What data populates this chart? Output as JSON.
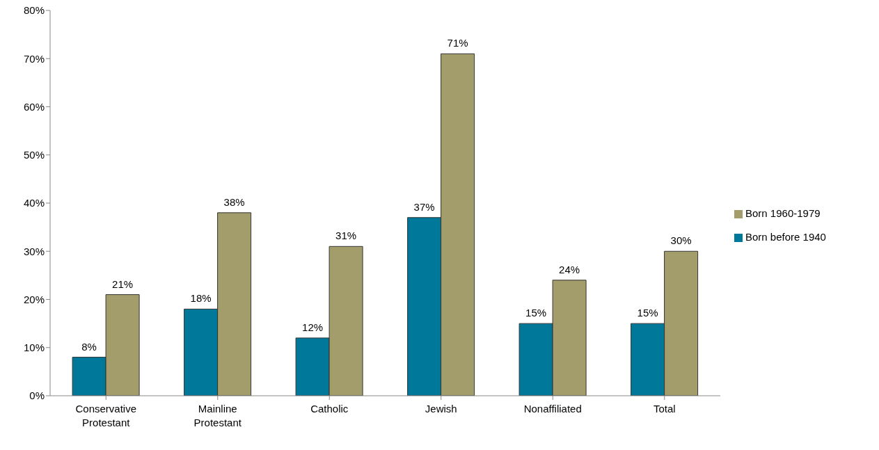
{
  "chart_data": {
    "type": "bar",
    "categories": [
      "Conservative Protestant",
      "Mainline Protestant",
      "Catholic",
      "Jewish",
      "Nonaffiliated",
      "Total"
    ],
    "series": [
      {
        "name": "Born before 1940",
        "color": "#00789a",
        "values": [
          8,
          18,
          12,
          37,
          15,
          15
        ],
        "value_labels": [
          "8%",
          "18%",
          "12%",
          "37%",
          "15%",
          "15%"
        ]
      },
      {
        "name": "Born 1960-1979",
        "color": "#a39d6b",
        "values": [
          21,
          38,
          31,
          71,
          24,
          30
        ],
        "value_labels": [
          "21%",
          "38%",
          "31%",
          "71%",
          "24%",
          "30%"
        ]
      }
    ],
    "ylim": [
      0,
      80
    ],
    "yticks": [
      {
        "value": 0,
        "label": "0%"
      },
      {
        "value": 10,
        "label": "10%"
      },
      {
        "value": 20,
        "label": "20%"
      },
      {
        "value": 30,
        "label": "30%"
      },
      {
        "value": 40,
        "label": "40%"
      },
      {
        "value": 50,
        "label": "50%"
      },
      {
        "value": 60,
        "label": "60%"
      },
      {
        "value": 70,
        "label": "70%"
      },
      {
        "value": 80,
        "label": "80%"
      }
    ],
    "grid": false,
    "legend": "right"
  }
}
